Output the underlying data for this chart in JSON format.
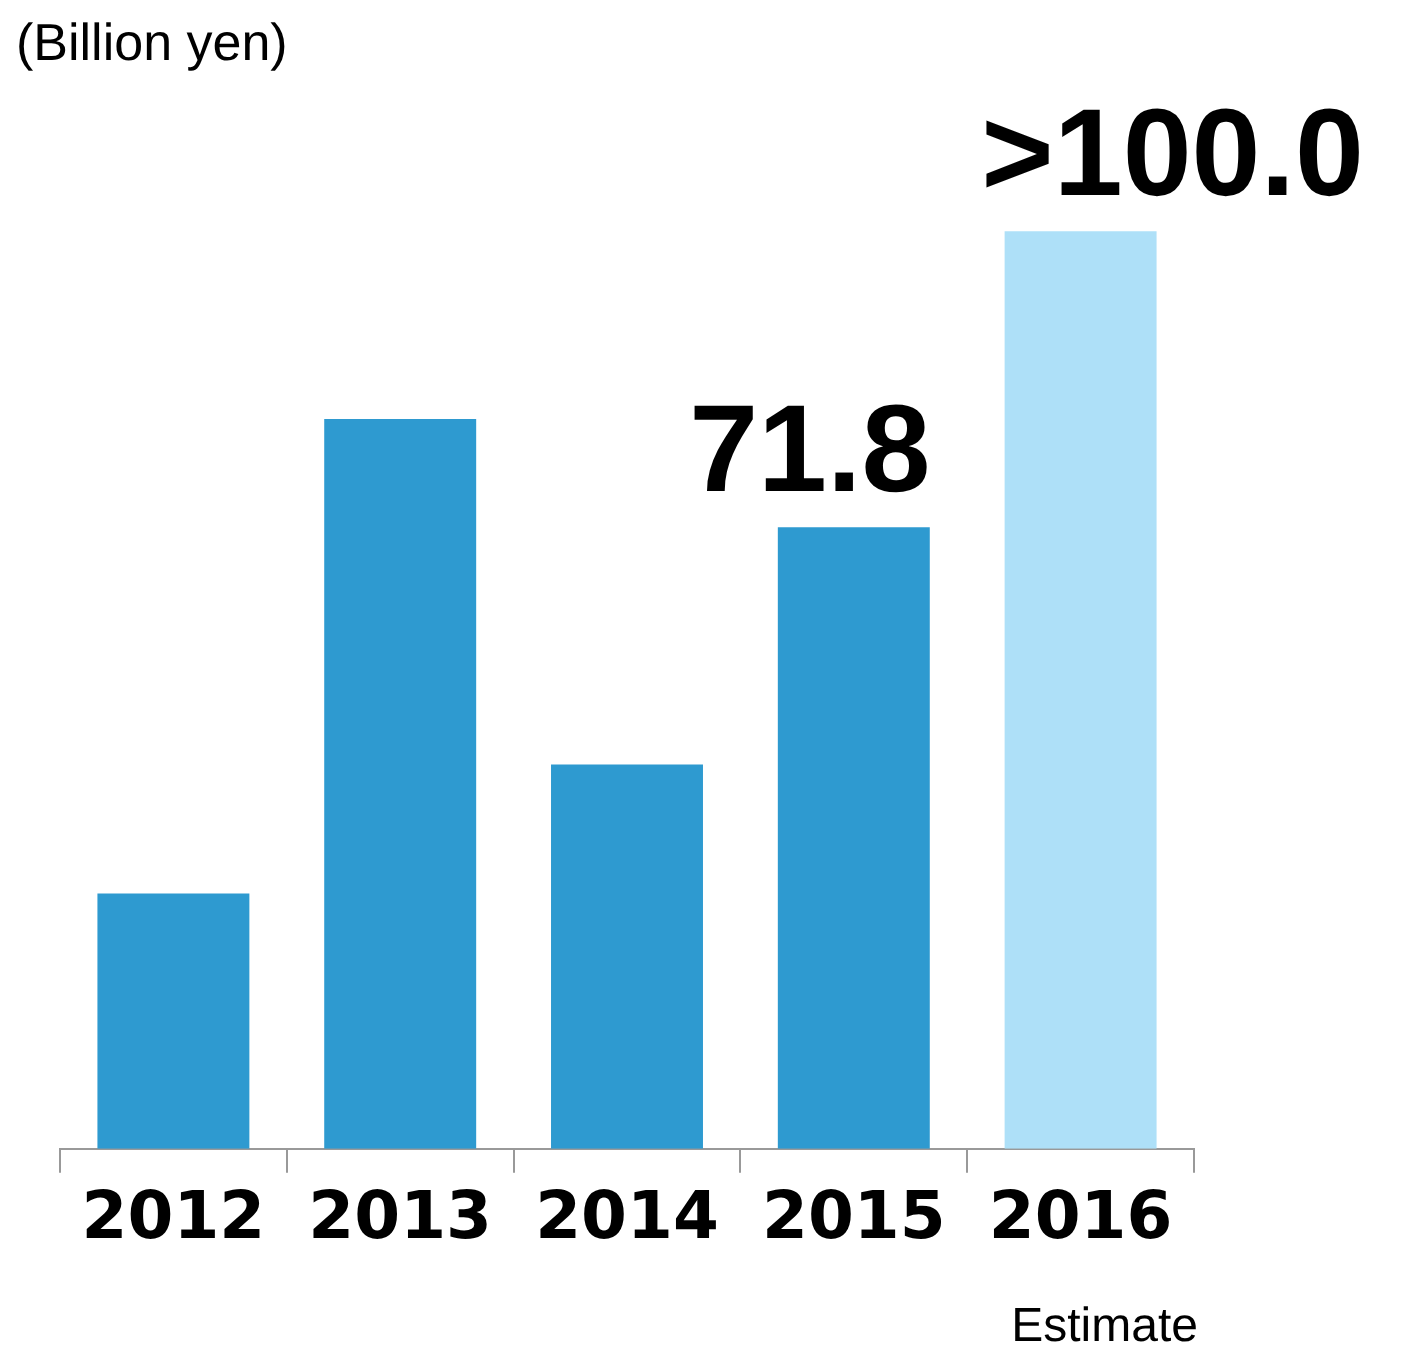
{
  "chart_data": {
    "type": "bar",
    "ylabel": "(Billion yen)",
    "categories": [
      "2012",
      "2013",
      "2014",
      "2015",
      "2016"
    ],
    "values": [
      29.5,
      84.3,
      44.4,
      71.8,
      106
    ],
    "colors": [
      "#2e9ad0",
      "#2e9ad0",
      "#2e9ad0",
      "#2e9ad0",
      "#aee0f8"
    ],
    "value_labels": [
      null,
      null,
      null,
      "71.8",
      ">100.0"
    ],
    "annotations": [
      "Estimate"
    ],
    "legend": false
  }
}
